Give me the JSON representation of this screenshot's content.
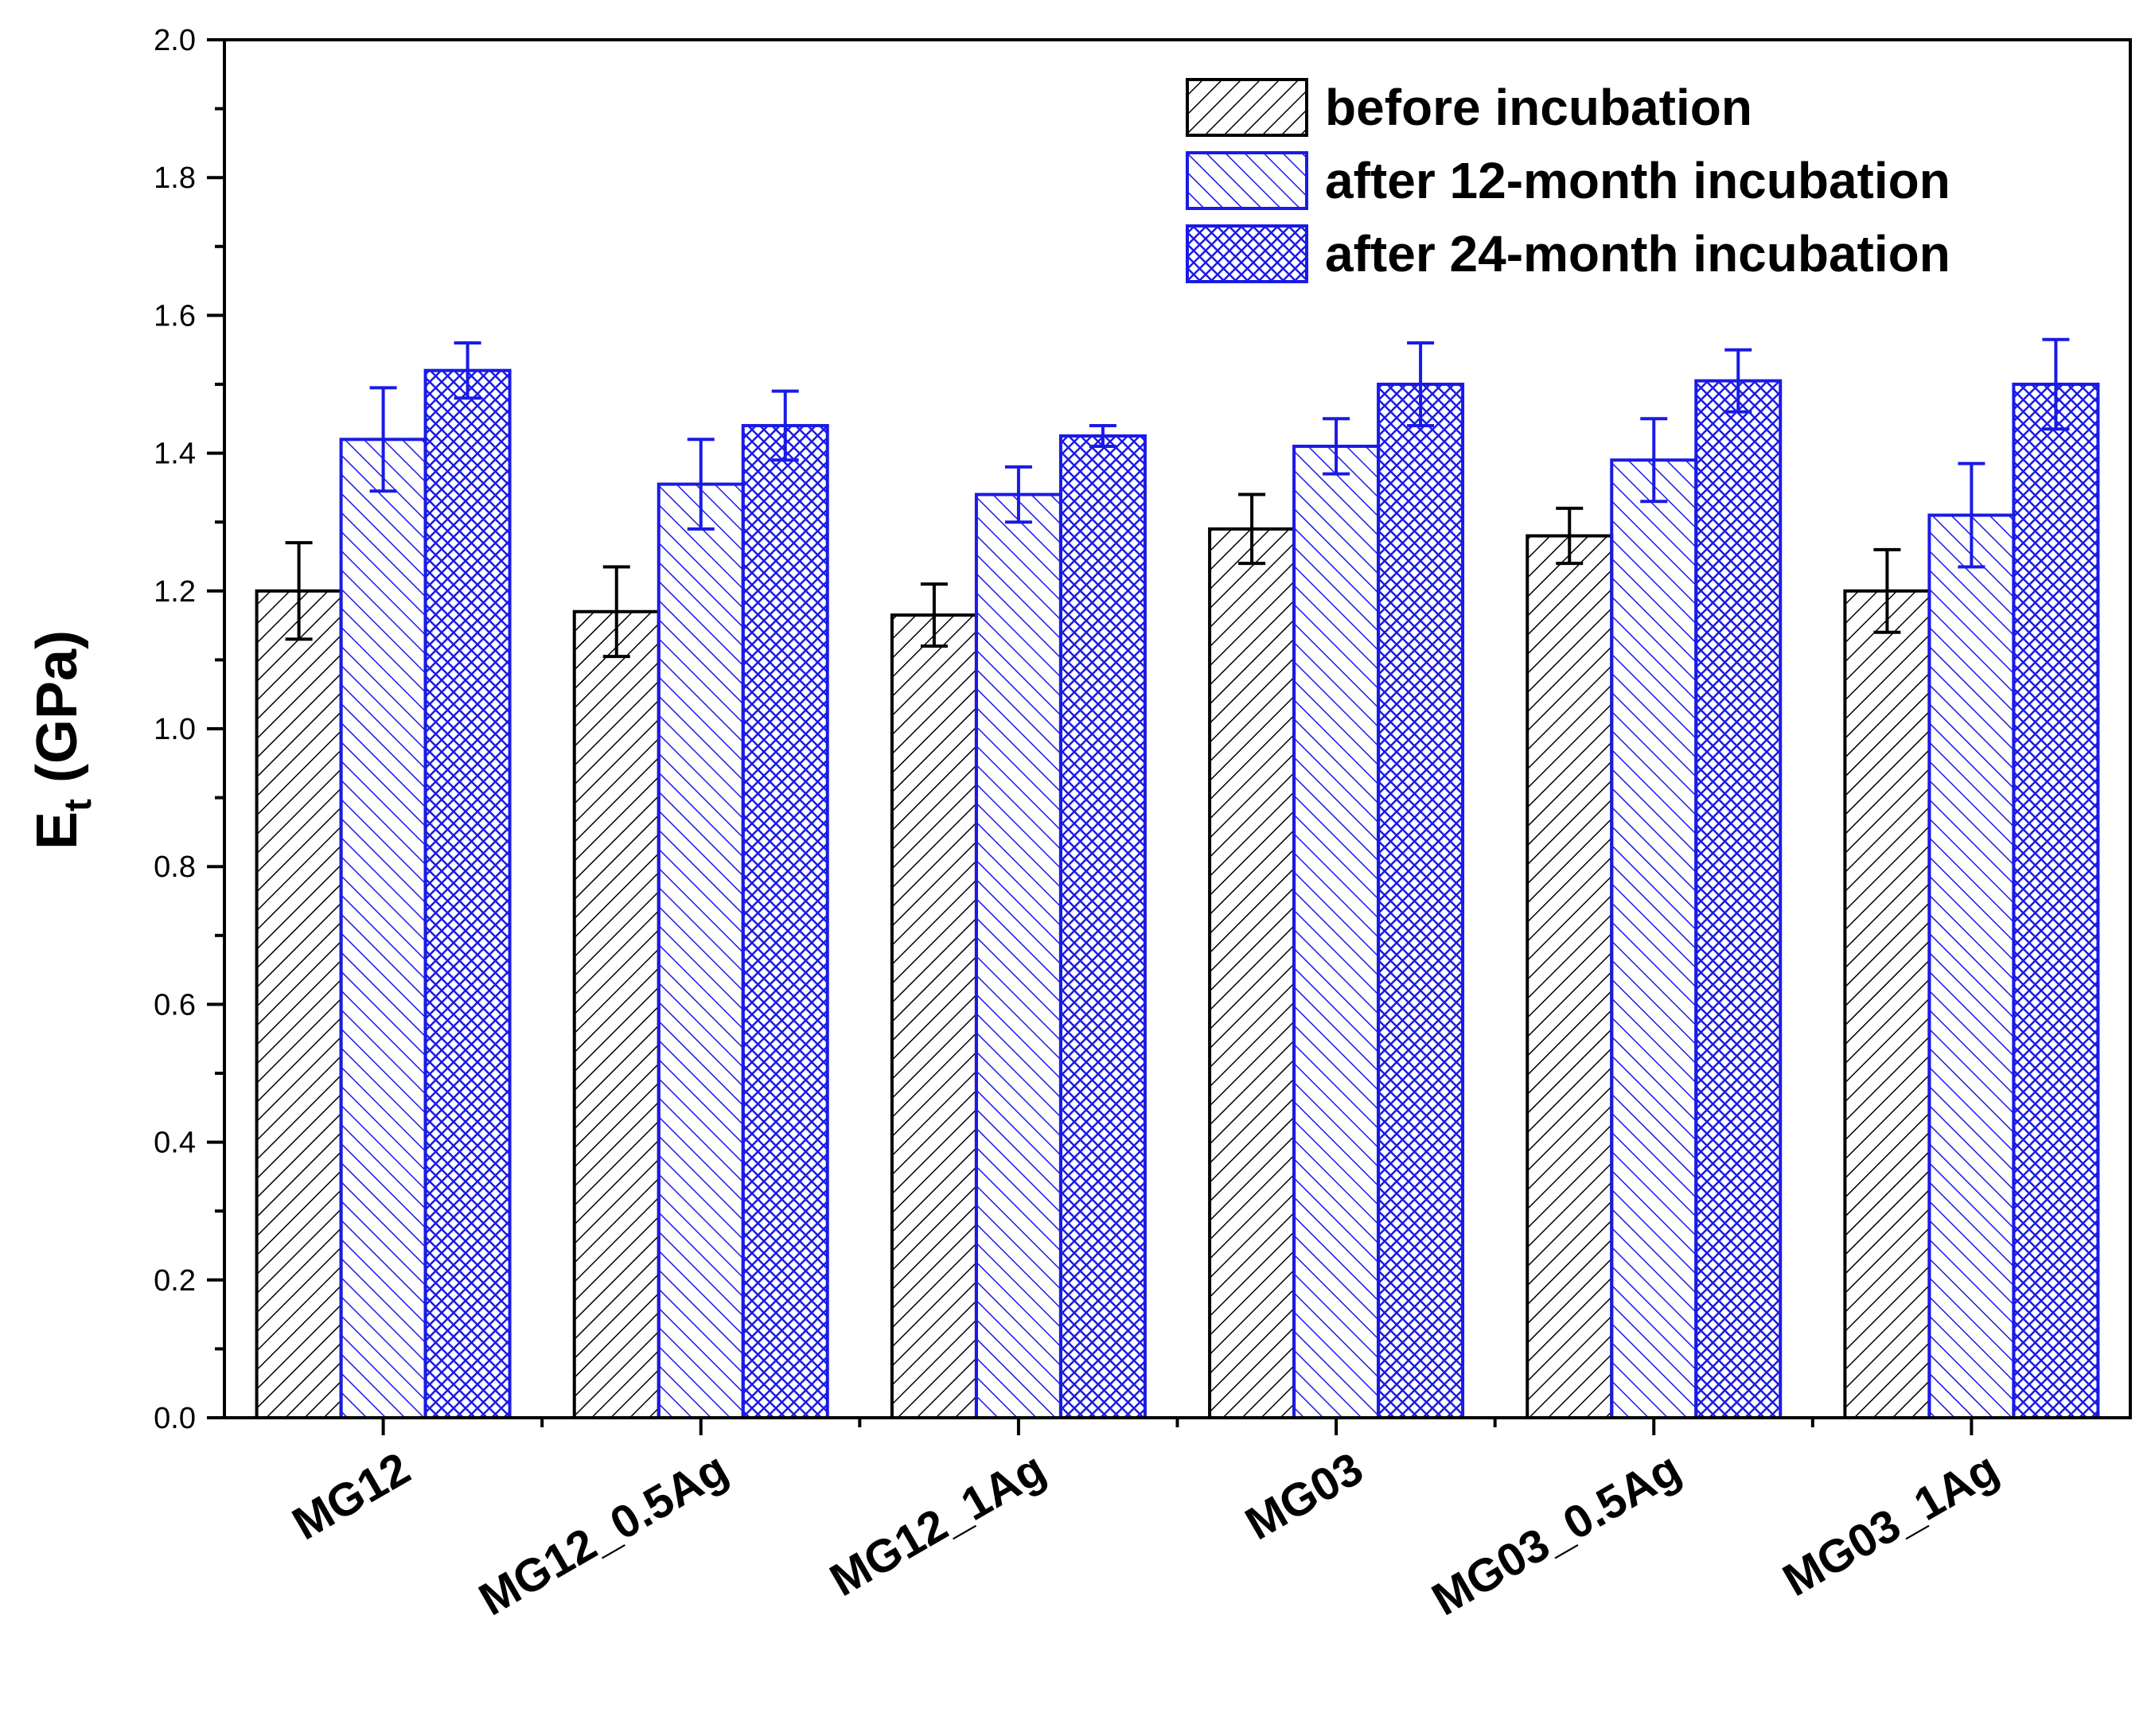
{
  "chart_data": {
    "type": "bar",
    "title": "",
    "xlabel": "",
    "ylabel": {
      "main": "E",
      "subscript": "t",
      "unit": " (GPa)"
    },
    "ylim": [
      0.0,
      2.0
    ],
    "ytick_step": 0.2,
    "ytick_labels": [
      "0.0",
      "0.2",
      "0.4",
      "0.6",
      "0.8",
      "1.0",
      "1.2",
      "1.4",
      "1.6",
      "1.8",
      "2.0"
    ],
    "categories": [
      "MG12",
      "MG12_0.5Ag",
      "MG12_1Ag",
      "MG03",
      "MG03_0.5Ag",
      "MG03_1Ag"
    ],
    "series": [
      {
        "name": "before incubation",
        "color": "#000000",
        "pattern": "diagonal-hatch",
        "values": [
          1.2,
          1.17,
          1.165,
          1.29,
          1.28,
          1.2
        ],
        "errors": [
          0.07,
          0.065,
          0.045,
          0.05,
          0.04,
          0.06
        ]
      },
      {
        "name": "after 12-month incubation",
        "color": "#1a1ae6",
        "pattern": "reverse-diagonal-hatch",
        "values": [
          1.42,
          1.355,
          1.34,
          1.41,
          1.39,
          1.31
        ],
        "errors": [
          0.075,
          0.065,
          0.04,
          0.04,
          0.06,
          0.075
        ]
      },
      {
        "name": "after 24-month incubation",
        "color": "#1a1ae6",
        "pattern": "crosshatch",
        "values": [
          1.52,
          1.44,
          1.425,
          1.5,
          1.505,
          1.5
        ],
        "errors": [
          0.04,
          0.05,
          0.015,
          0.06,
          0.045,
          0.065
        ]
      }
    ],
    "legend": {
      "position": "top-right"
    },
    "grid": false
  }
}
